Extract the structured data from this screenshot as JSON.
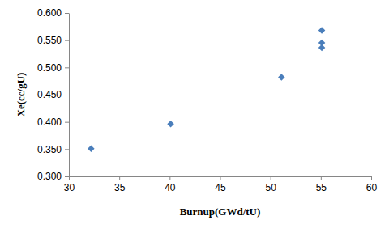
{
  "chart_data": {
    "type": "scatter",
    "x_label": "Burnup(GWd/tU)",
    "y_label": "Xe(cc/gU)",
    "x": [
      32.2,
      40.1,
      51.1,
      55.1,
      55.1,
      55.1
    ],
    "values": [
      0.351,
      0.396,
      0.482,
      0.568,
      0.545,
      0.536
    ],
    "color": "#4a7ebb",
    "marker": "diamond",
    "xlim": [
      30,
      60
    ],
    "xticks": [
      30,
      35,
      40,
      45,
      50,
      55,
      60
    ],
    "ylim": [
      0.3,
      0.6
    ],
    "yticks": [
      {
        "value": 0.3,
        "label": "0.300"
      },
      {
        "value": 0.35,
        "label": "0.350"
      },
      {
        "value": 0.4,
        "label": "0.400"
      },
      {
        "value": 0.45,
        "label": "0.450"
      },
      {
        "value": 0.5,
        "label": "0.500"
      },
      {
        "value": 0.55,
        "label": "0.550"
      },
      {
        "value": 0.6,
        "label": "0.600"
      }
    ],
    "grid": false
  }
}
